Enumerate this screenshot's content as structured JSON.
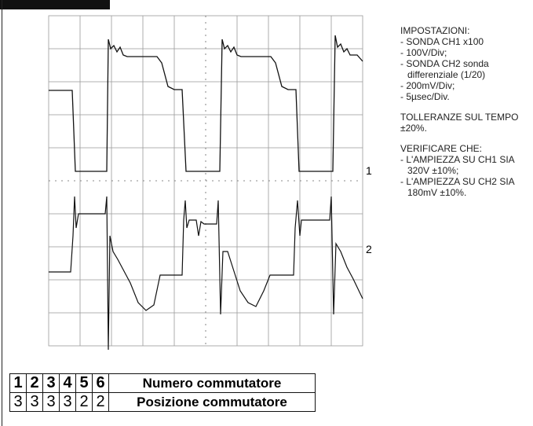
{
  "scope": {
    "markers": [
      "1",
      "2"
    ]
  },
  "notes": {
    "settings": {
      "title": "IMPOSTAZIONI:",
      "items": [
        "- SONDA CH1 x100",
        "- 100V/Div;",
        "- SONDA CH2  sonda differenziale (1/20)",
        "- 200mV/Div;",
        "- 5µsec/Div."
      ]
    },
    "tolerance": "TOLLERANZE SUL TEMPO ±20%.",
    "verify": {
      "title": "VERIFICARE CHE:",
      "items": [
        "- L'AMPIEZZA SU CH1 SIA 320V ±10%;",
        "- L'AMPIEZZA SU CH2 SIA 180mV ±10%."
      ]
    }
  },
  "table": {
    "rows": [
      [
        "1",
        "2",
        "3",
        "4",
        "5",
        "6",
        "Numero commutatore"
      ],
      [
        "3",
        "3",
        "3",
        "3",
        "2",
        "2",
        "Posizione commutatore"
      ]
    ]
  }
}
